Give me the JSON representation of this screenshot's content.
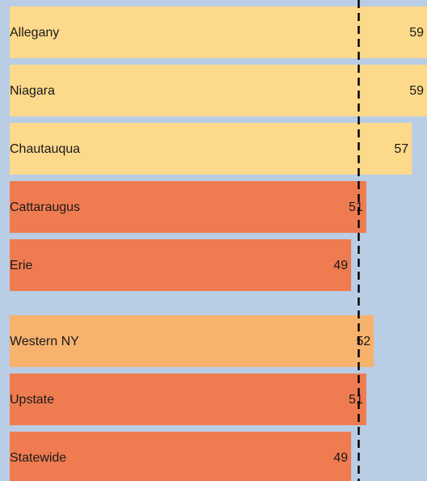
{
  "chart_data": {
    "type": "hbar",
    "categories": [
      "Allegany",
      "Niagara",
      "Chautauqua",
      "Cattaraugus",
      "Erie",
      "Western NY",
      "Upstate",
      "Statewide"
    ],
    "values": [
      59,
      59,
      57,
      51,
      49,
      52,
      51,
      49
    ],
    "colors": [
      "#fdd98b",
      "#fdd98b",
      "#fdd98b",
      "#ef7c50",
      "#ef7c50",
      "#f7b26e",
      "#ef7c50",
      "#ef7c50"
    ],
    "xlim": [
      4,
      59
    ],
    "reference_line": 50
  }
}
